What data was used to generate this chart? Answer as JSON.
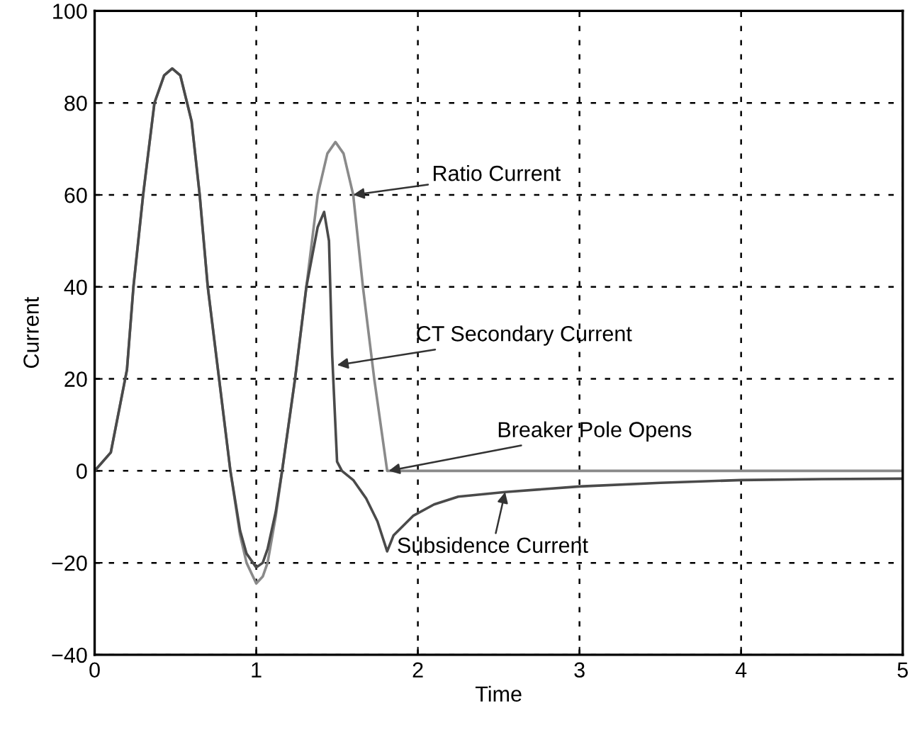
{
  "chart_data": {
    "type": "line",
    "xlabel": "Time",
    "ylabel": "Current",
    "xlim": [
      0,
      5
    ],
    "xticks": [
      0,
      1,
      2,
      3,
      4,
      5
    ],
    "ylim": [
      -40,
      100
    ],
    "yticks": [
      -40,
      -20,
      0,
      20,
      40,
      60,
      80,
      100
    ],
    "grid": true,
    "marker": "none",
    "line_style": "solid",
    "series": [
      {
        "color": "#8a8a8a",
        "x": [
          0,
          0.1,
          0.2,
          0.24,
          0.3,
          0.37,
          0.43,
          0.48,
          0.53,
          0.6,
          0.65,
          0.7,
          0.77,
          0.84,
          0.9,
          0.94,
          1.0,
          1.04,
          1.07,
          1.12,
          1.16,
          1.24,
          1.31,
          1.38,
          1.44,
          1.49,
          1.54,
          1.6,
          1.66,
          1.73,
          1.81,
          5
        ],
        "values": [
          0,
          4,
          22,
          40,
          60,
          80,
          86,
          87.5,
          86,
          76,
          60,
          40,
          20,
          0,
          -14,
          -20,
          -24.5,
          -23,
          -20,
          -10,
          0,
          20,
          40,
          60,
          69,
          71.5,
          69,
          60,
          40,
          20,
          0,
          0
        ]
      },
      {
        "color": "#4a4a4a",
        "x": [
          0,
          0.1,
          0.2,
          0.24,
          0.3,
          0.37,
          0.43,
          0.48,
          0.53,
          0.6,
          0.65,
          0.7,
          0.77,
          0.84,
          0.9,
          0.94,
          1.0,
          1.04,
          1.07,
          1.12,
          1.16,
          1.24,
          1.31,
          1.38,
          1.42,
          1.45,
          1.47,
          1.5,
          1.53,
          1.6,
          1.68,
          1.75,
          1.81,
          1.85,
          1.97,
          2.1,
          2.25,
          2.54,
          3,
          3.5,
          4,
          4.5,
          5
        ],
        "values": [
          0,
          4,
          22,
          40,
          60,
          80,
          86,
          87.5,
          86,
          76,
          60,
          40,
          20,
          0,
          -13,
          -18,
          -21,
          -20,
          -17,
          -9,
          0,
          20,
          40,
          53,
          56.3,
          50,
          25,
          2,
          0,
          -2,
          -6,
          -11,
          -17.5,
          -14,
          -9.8,
          -7.3,
          -5.6,
          -4.6,
          -3.4,
          -2.6,
          -2,
          -1.8,
          -1.7
        ]
      }
    ],
    "annotations": [
      {
        "text": "Ratio Current",
        "x": 1.6,
        "y": 60
      },
      {
        "text": "CT Secondary Current",
        "x": 1.5,
        "y": 23
      },
      {
        "text": "Breaker Pole Opens",
        "x": 1.82,
        "y": 0
      },
      {
        "text": "Subsidence Current",
        "x": 2.54,
        "y": -4.6
      }
    ]
  }
}
